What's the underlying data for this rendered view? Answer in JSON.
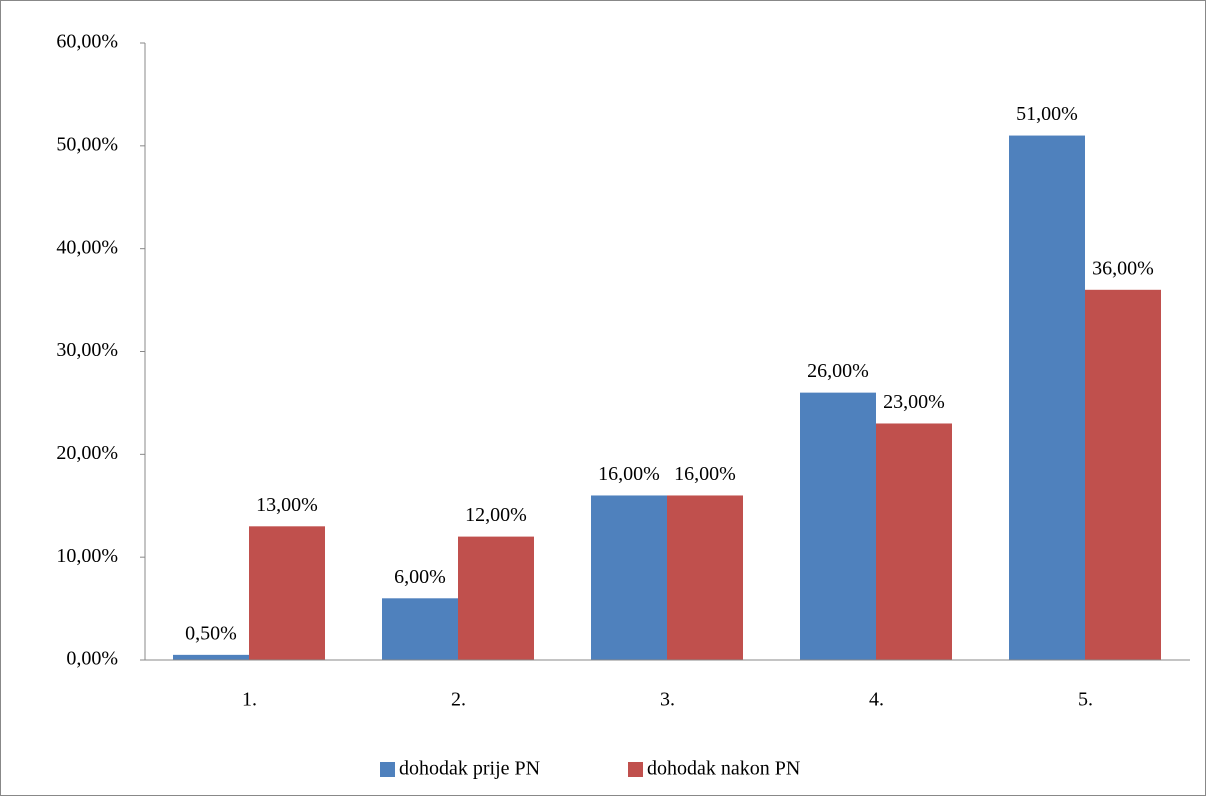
{
  "chart_data": {
    "type": "bar",
    "categories": [
      "1.",
      "2.",
      "3.",
      "4.",
      "5."
    ],
    "series": [
      {
        "name": "dohodak prije PN",
        "color": "#4f81bd",
        "values": [
          0.5,
          6,
          16,
          26,
          51
        ],
        "value_labels": [
          "0,50%",
          "6,00%",
          "16,00%",
          "26,00%",
          "51,00%"
        ]
      },
      {
        "name": "dohodak nakon PN",
        "color": "#c0504d",
        "values": [
          13,
          12,
          16,
          23,
          36
        ],
        "value_labels": [
          "13,00%",
          "12,00%",
          "16,00%",
          "23,00%",
          "36,00%"
        ]
      }
    ],
    "ylim": [
      0,
      60
    ],
    "yticks": [
      {
        "value": 0,
        "label": "0,00%"
      },
      {
        "value": 10,
        "label": "10,00%"
      },
      {
        "value": 20,
        "label": "20,00%"
      },
      {
        "value": 30,
        "label": "30,00%"
      },
      {
        "value": 40,
        "label": "40,00%"
      },
      {
        "value": 50,
        "label": "50,00%"
      },
      {
        "value": 60,
        "label": "60,00%"
      }
    ],
    "grid": false,
    "legend": "bottom"
  }
}
